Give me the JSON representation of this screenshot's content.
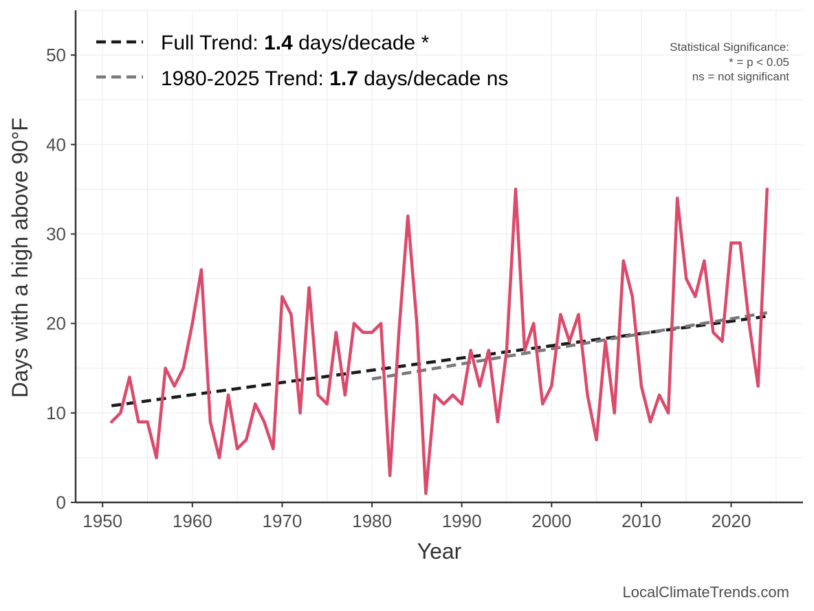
{
  "chart_data": {
    "type": "line",
    "xlabel": "Year",
    "ylabel": "Days with a high above 90°F",
    "xlim": [
      1947,
      2028
    ],
    "ylim": [
      0,
      55
    ],
    "x_ticks": [
      1950,
      1960,
      1970,
      1980,
      1990,
      2000,
      2010,
      2020
    ],
    "y_ticks": [
      0,
      10,
      20,
      30,
      40,
      50
    ],
    "grid": true,
    "series": [
      {
        "name": "Days with a high above 90°F",
        "color": "#dc4a6b",
        "x": [
          1951,
          1952,
          1953,
          1954,
          1955,
          1956,
          1957,
          1958,
          1959,
          1960,
          1961,
          1962,
          1963,
          1964,
          1965,
          1966,
          1967,
          1968,
          1969,
          1970,
          1971,
          1972,
          1973,
          1974,
          1975,
          1976,
          1977,
          1978,
          1979,
          1980,
          1981,
          1982,
          1983,
          1984,
          1985,
          1986,
          1987,
          1988,
          1989,
          1990,
          1991,
          1992,
          1993,
          1994,
          1995,
          1996,
          1997,
          1998,
          1999,
          2000,
          2001,
          2002,
          2003,
          2004,
          2005,
          2006,
          2007,
          2008,
          2009,
          2010,
          2011,
          2012,
          2013,
          2014,
          2015,
          2016,
          2017,
          2018,
          2019,
          2020,
          2021,
          2022,
          2023,
          2024
        ],
        "values": [
          9,
          10,
          14,
          9,
          9,
          5,
          15,
          13,
          15,
          20,
          26,
          9,
          5,
          12,
          6,
          7,
          11,
          9,
          6,
          23,
          21,
          10,
          24,
          12,
          11,
          19,
          12,
          20,
          19,
          19,
          20,
          3,
          19,
          32,
          20,
          1,
          12,
          11,
          12,
          11,
          17,
          13,
          17,
          9,
          17,
          35,
          17,
          20,
          11,
          13,
          21,
          18,
          21,
          12,
          7,
          18,
          10,
          27,
          23,
          13,
          9,
          12,
          10,
          34,
          25,
          23,
          27,
          19,
          18,
          29,
          29,
          20,
          13,
          35
        ]
      }
    ],
    "trends": [
      {
        "name": "Full Trend",
        "label_prefix": "Full Trend: ",
        "rate": "1.4",
        "label_suffix": " days/decade *",
        "color": "#1a1a1a",
        "x": [
          1951,
          2024
        ],
        "y": [
          10.8,
          20.8
        ]
      },
      {
        "name": "1980-2025 Trend",
        "label_prefix": "1980-2025 Trend: ",
        "rate": "1.7",
        "label_suffix": " days/decade ns",
        "color": "#7a7a7a",
        "x": [
          1980,
          2024
        ],
        "y": [
          13.8,
          21.2
        ]
      }
    ],
    "legend_position": "top-left",
    "significance_note": [
      "Statistical Significance:",
      "* = p < 0.05",
      "ns = not significant"
    ],
    "credit": "LocalClimateTrends.com"
  }
}
